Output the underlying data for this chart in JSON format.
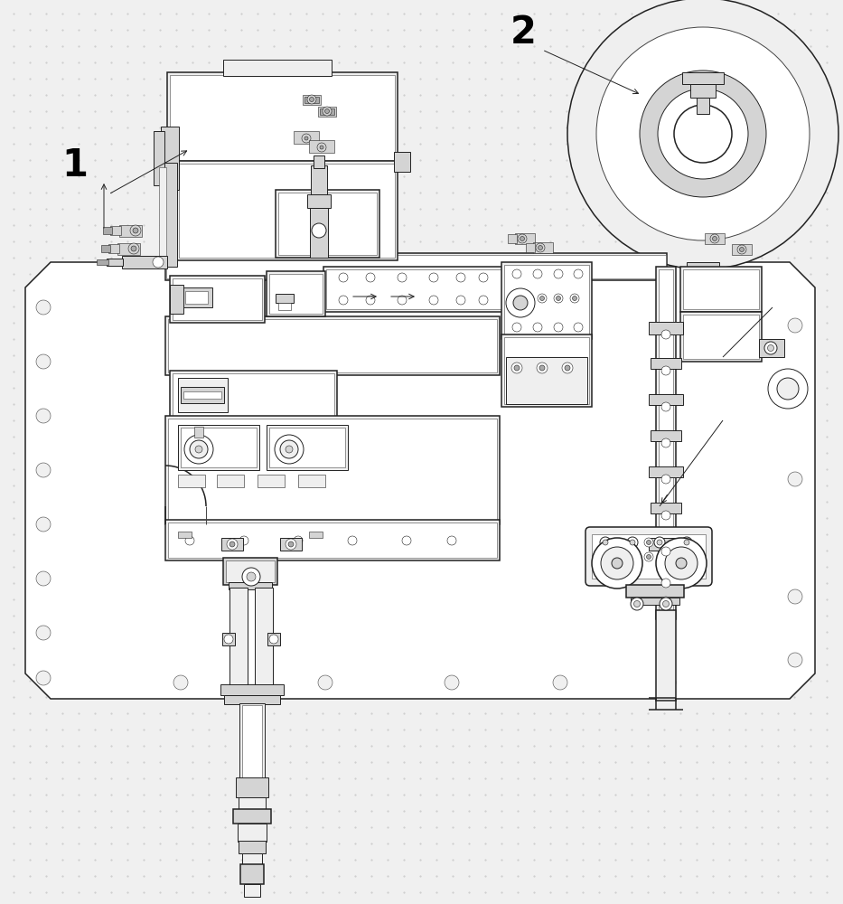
{
  "bg_color": "#f0f0f0",
  "dot_color": "#c8c8c8",
  "line_color": "#444444",
  "dark_line": "#222222",
  "fill_white": "#ffffff",
  "fill_light": "#efefef",
  "fill_medium": "#d4d4d4",
  "fill_dark": "#aaaaaa",
  "label1": "1",
  "label2": "2"
}
